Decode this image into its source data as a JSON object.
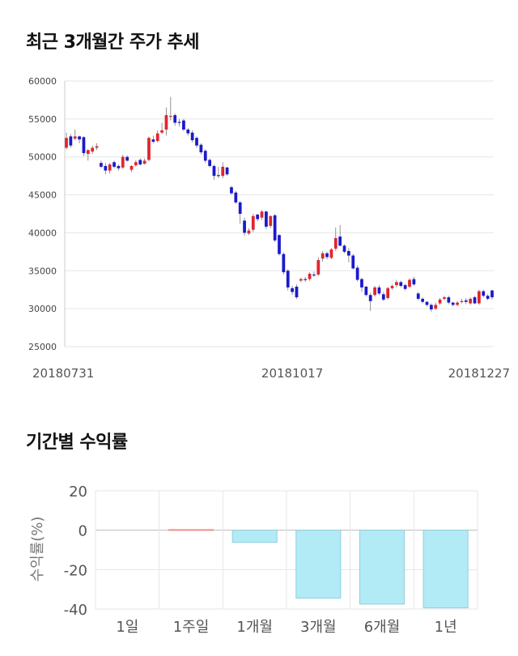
{
  "titles": {
    "price_trend": "최근 3개월간 주가 추세",
    "period_returns": "기간별 수익률"
  },
  "colors": {
    "up": "#e0262d",
    "down": "#1a1acd",
    "bar": "#b2ebf5",
    "bar_border": "#8fcfdc",
    "positive_bar": "#f28b8b",
    "grid": "#e6e6e6"
  },
  "chart_data": [
    {
      "type": "candlestick",
      "title": "최근 3개월간 주가 추세",
      "ylim": [
        25000,
        60000
      ],
      "yticks": [
        60000,
        55000,
        50000,
        45000,
        40000,
        35000,
        30000,
        25000
      ],
      "xtick_labels": [
        "20180731",
        "20181017",
        "20181227"
      ],
      "xtick_index": [
        0,
        52,
        98
      ],
      "grid": true,
      "close": [
        52500,
        51500,
        52700,
        52300,
        50500,
        50900,
        51200,
        51400,
        48700,
        48200,
        49000,
        48700,
        48500,
        50000,
        49500,
        48800,
        49300,
        49000,
        49500,
        52500,
        52000,
        53100,
        53500,
        55500,
        55400,
        54500,
        54500,
        53600,
        53100,
        52200,
        51500,
        50600,
        49500,
        48800,
        47500,
        47500,
        48700,
        47700,
        45200,
        44000,
        42500,
        40000,
        40300,
        42200,
        41800,
        42800,
        40800,
        42200,
        39000,
        37200,
        34800,
        32800,
        32200,
        31500,
        33900,
        33800,
        34600,
        34400,
        36400,
        37300,
        36800,
        37800,
        39300,
        38300,
        37500,
        37000,
        35300,
        33800,
        32800,
        31800,
        31000,
        32800,
        32000,
        31200,
        32700,
        33000,
        33500,
        33000,
        32600,
        33800,
        33200,
        31300,
        30900,
        30500,
        29900,
        30500,
        31200,
        31500,
        30800,
        30500,
        30800,
        31000,
        30900,
        31300,
        30700,
        32300,
        31700,
        31300,
        31500
      ],
      "open": [
        51200,
        52700,
        52400,
        52700,
        52600,
        50400,
        50700,
        51200,
        49200,
        48800,
        48200,
        49300,
        48800,
        48600,
        50000,
        48300,
        48900,
        49600,
        49100,
        49600,
        52300,
        52100,
        53200,
        53600,
        55300,
        55500,
        54600,
        54800,
        53600,
        53200,
        52500,
        51600,
        50800,
        49600,
        48800,
        47600,
        47500,
        48600,
        46000,
        45300,
        44000,
        41600,
        39900,
        40400,
        42400,
        42000,
        42800,
        40900,
        42300,
        39700,
        37200,
        35000,
        32700,
        32900,
        33700,
        33900,
        33900,
        34500,
        34500,
        36600,
        37300,
        36700,
        37900,
        39500,
        38300,
        37600,
        37000,
        35400,
        33900,
        32900,
        31800,
        31800,
        32800,
        31900,
        31400,
        32700,
        33100,
        33500,
        33100,
        32900,
        33900,
        32000,
        31300,
        30900,
        30500,
        30000,
        30700,
        31300,
        31500,
        30800,
        30500,
        30900,
        31100,
        30700,
        31500,
        30700,
        32300,
        31700,
        32400
      ],
      "high": [
        53200,
        53000,
        53600,
        52800,
        52700,
        51000,
        51500,
        51800,
        49500,
        49200,
        49200,
        49500,
        49000,
        50300,
        50200,
        48900,
        49600,
        49800,
        49800,
        52700,
        52800,
        53500,
        54500,
        56500,
        57900,
        55700,
        55000,
        55000,
        53800,
        53500,
        52700,
        51800,
        51000,
        49800,
        49000,
        48700,
        49300,
        48700,
        46200,
        45500,
        44200,
        42000,
        40600,
        42500,
        42500,
        43000,
        42900,
        42300,
        42500,
        39800,
        37400,
        35200,
        33000,
        33200,
        34100,
        34200,
        34800,
        34900,
        36800,
        37600,
        37500,
        38000,
        40700,
        41000,
        38500,
        38000,
        37200,
        35700,
        34100,
        33000,
        32100,
        33000,
        33100,
        32200,
        32900,
        33200,
        33800,
        33700,
        33300,
        34000,
        34200,
        32200,
        31500,
        31000,
        30700,
        30800,
        31400,
        31700,
        31700,
        30900,
        31000,
        31300,
        31400,
        31500,
        31700,
        32500,
        32500,
        31900,
        32500
      ],
      "low": [
        51000,
        51200,
        52200,
        51800,
        50100,
        49500,
        50400,
        50900,
        48500,
        47700,
        47800,
        48500,
        48200,
        48400,
        49400,
        48000,
        48700,
        48900,
        49000,
        49400,
        51800,
        51900,
        53000,
        52800,
        54800,
        54100,
        54000,
        53400,
        52800,
        51900,
        51200,
        50300,
        49200,
        48600,
        47000,
        47200,
        47200,
        47500,
        45000,
        43800,
        41200,
        39600,
        39700,
        40100,
        41500,
        41700,
        40500,
        40600,
        38800,
        37000,
        34500,
        32400,
        31800,
        31300,
        33500,
        33500,
        33700,
        34200,
        34300,
        36200,
        36500,
        36500,
        37600,
        38200,
        37300,
        36100,
        35200,
        33600,
        32200,
        31600,
        29700,
        31600,
        31800,
        31000,
        31200,
        32500,
        32800,
        32800,
        32400,
        32700,
        33000,
        31100,
        30700,
        30300,
        29600,
        29800,
        30500,
        31100,
        30600,
        30300,
        30300,
        30700,
        30600,
        30500,
        30600,
        30500,
        31500,
        31100,
        31200
      ]
    },
    {
      "type": "bar",
      "title": "기간별 수익률",
      "categories": [
        "1일",
        "1주일",
        "1개월",
        "3개월",
        "6개월",
        "1년"
      ],
      "values": [
        0.0,
        0.3,
        -6.2,
        -34.5,
        -37.5,
        -39.4
      ],
      "ylabel": "수익률(%)",
      "ylim": [
        -40,
        20
      ],
      "yticks": [
        20,
        0,
        -20,
        -40
      ],
      "grid": true
    }
  ]
}
